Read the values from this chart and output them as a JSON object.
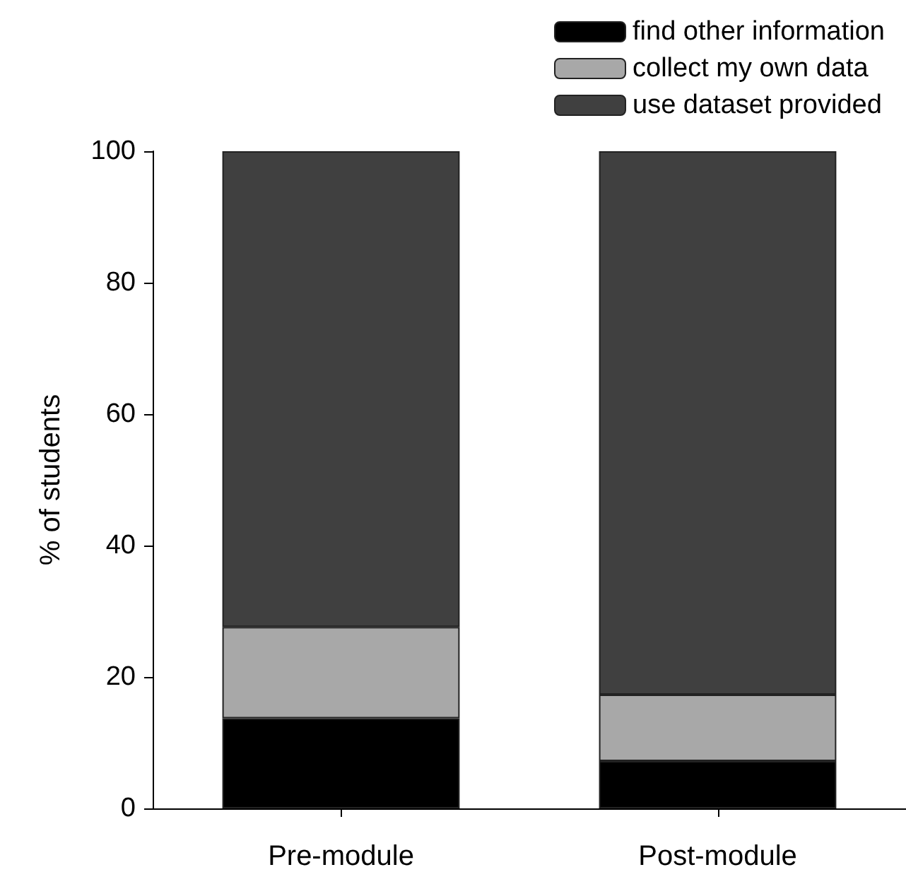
{
  "chart_data": {
    "type": "bar",
    "stacked": true,
    "ylabel": "% of students",
    "categories": [
      "Pre-module",
      "Post-module"
    ],
    "series": [
      {
        "name": "find other information",
        "color": "#000000",
        "values": [
          13.7,
          7.2
        ]
      },
      {
        "name": "collect my own data",
        "color": "#a8a8a8",
        "values": [
          13.9,
          10.1
        ]
      },
      {
        "name": "use dataset provided",
        "color": "#404040",
        "values": [
          72.4,
          82.7
        ]
      }
    ],
    "ylim": [
      0,
      100
    ],
    "yticks": [
      0,
      20,
      40,
      60,
      80,
      100
    ],
    "grid": false,
    "legend": "top right"
  }
}
